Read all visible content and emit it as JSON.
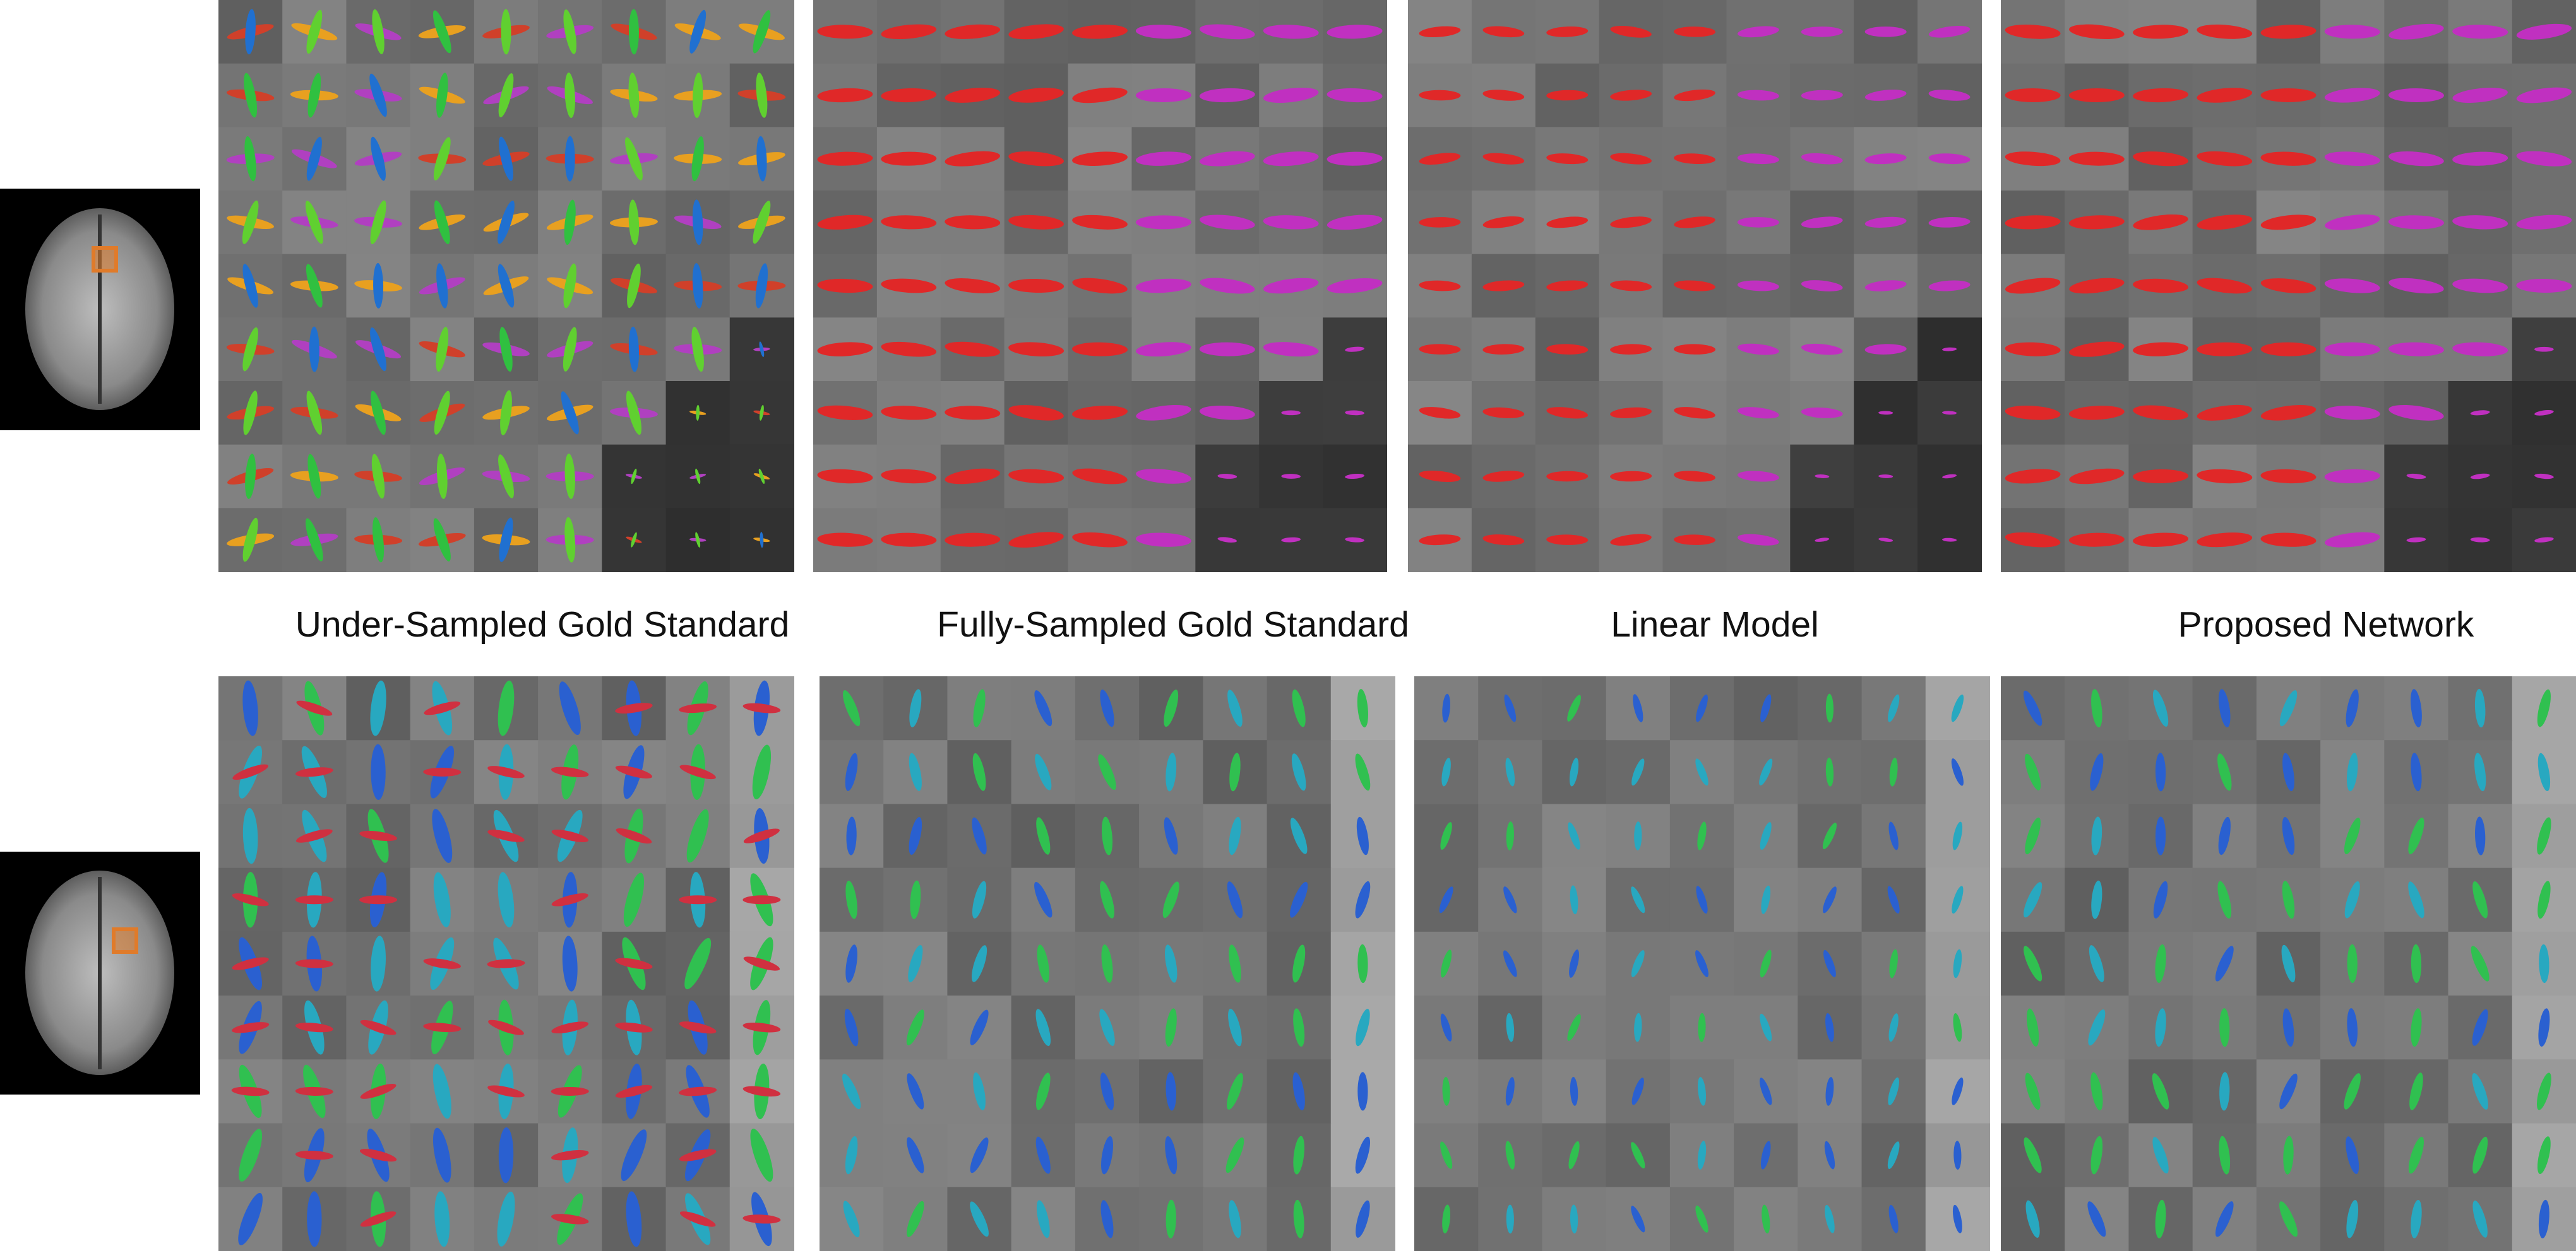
{
  "labels": [
    "Under-Sampled Gold Standard",
    "Fully-Sampled Gold Standard",
    "Linear Model",
    "Proposed Network"
  ]
}
